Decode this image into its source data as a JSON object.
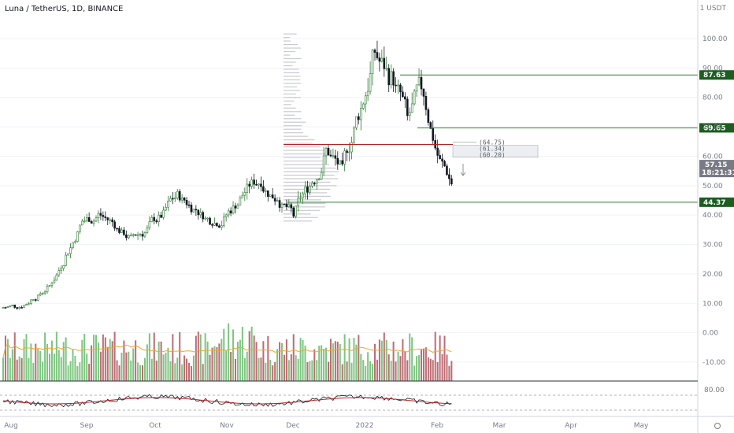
{
  "title": "Luna / TetherUS, 1D, BINANCE",
  "price_axis_unit": "1 USDT",
  "price_axis_ticks": [
    "100.00",
    "90.00",
    "80.00",
    "70.00",
    "60.00",
    "50.00",
    "40.00",
    "30.00",
    "20.00",
    "10.00",
    "0.00",
    "-10.00"
  ],
  "rsi_axis_ticks": [
    "80.00"
  ],
  "x_axis_labels": [
    "Aug",
    "Sep",
    "Oct",
    "Nov",
    "Dec",
    "2022",
    "Feb",
    "Mar",
    "Apr",
    "May"
  ],
  "price_badges": [
    {
      "label": "87.63",
      "value": 87.63,
      "color": "#1b5e20"
    },
    {
      "label": "69.65",
      "value": 69.65,
      "color": "#1b5e20"
    },
    {
      "label": "44.37",
      "value": 44.37,
      "color": "#1b5e20"
    }
  ],
  "current_price": {
    "label": "57.15",
    "countdown": "18:21:31",
    "value": 57.15
  },
  "annotations": [
    "(64.75)",
    "(61.34)",
    "(60.20)"
  ],
  "colors": {
    "up": "#2e7d32",
    "down": "#131722",
    "vol_up": "#66bb6a",
    "vol_down": "#b0525a",
    "level": "#2e7d32",
    "resistance": "#b22222",
    "vol_ma": "#f5a623",
    "rsi": "#131722",
    "rsi_ma": "#b22222",
    "grid": "#f0f3fa"
  },
  "chart_data": {
    "type": "candlestick",
    "symbol": "Luna / TetherUS",
    "interval": "1D",
    "exchange": "BINANCE",
    "y_range": [
      -12,
      106
    ],
    "x_range": [
      "Jul 25",
      "May 18"
    ],
    "horizontal_levels": [
      87.63,
      69.65,
      44.37,
      64.0
    ],
    "projection_box": [
      61.34,
      64.75
    ],
    "weekly_close_approx": {
      "dates": [
        "Jul 27",
        "Aug 3",
        "Aug 10",
        "Aug 17",
        "Aug 24",
        "Aug 31",
        "Sep 7",
        "Sep 14",
        "Sep 21",
        "Sep 28",
        "Oct 5",
        "Oct 12",
        "Oct 19",
        "Oct 26",
        "Nov 2",
        "Nov 9",
        "Nov 16",
        "Nov 23",
        "Nov 30",
        "Dec 7",
        "Dec 14",
        "Dec 21",
        "Dec 28",
        "Jan 4",
        "Jan 11",
        "Jan 18",
        "Jan 25",
        "Feb 1",
        "Feb 8"
      ],
      "values": [
        9,
        12,
        16,
        26,
        38,
        40,
        37,
        32,
        35,
        40,
        47,
        42,
        38,
        41,
        48,
        52,
        46,
        40,
        50,
        62,
        55,
        75,
        96,
        86,
        73,
        82,
        58,
        48,
        57
      ]
    },
    "current_price": 57.15
  }
}
